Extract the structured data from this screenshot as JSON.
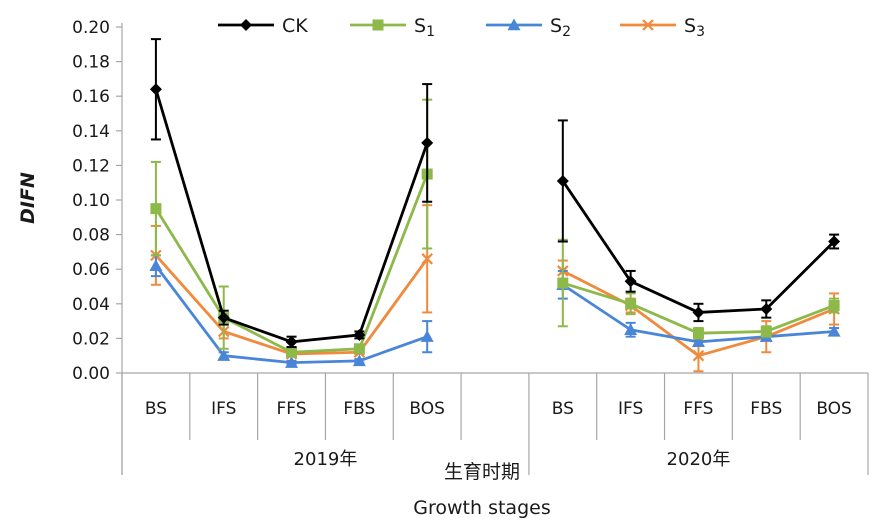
{
  "chart_data": {
    "type": "line",
    "ylabel": "DIFN",
    "xlabel": "Growth stages",
    "xlabel_zh": "生育时期",
    "ylim": [
      0,
      0.2
    ],
    "yticks": [
      "0.00",
      "0.02",
      "0.04",
      "0.06",
      "0.08",
      "0.10",
      "0.12",
      "0.14",
      "0.16",
      "0.18",
      "0.20"
    ],
    "grid": false,
    "legend_position": "top",
    "groups": [
      {
        "label": "2019年",
        "categories": [
          "BS",
          "IFS",
          "FFS",
          "FBS",
          "BOS"
        ]
      },
      {
        "label": "2020年",
        "categories": [
          "BS",
          "IFS",
          "FFS",
          "FBS",
          "BOS"
        ]
      }
    ],
    "series": [
      {
        "name": "CK",
        "sub": "",
        "color": "#000000",
        "marker": "diamond",
        "values": [
          [
            0.164,
            0.032,
            0.018,
            0.022,
            0.133
          ],
          [
            0.111,
            0.053,
            0.035,
            0.037,
            0.076
          ]
        ],
        "errors": [
          [
            0.029,
            0.004,
            0.003,
            0.002,
            0.034
          ],
          [
            0.035,
            0.006,
            0.005,
            0.005,
            0.004
          ]
        ]
      },
      {
        "name": "S",
        "sub": "1",
        "color": "#8db84a",
        "marker": "square",
        "values": [
          [
            0.095,
            0.032,
            0.012,
            0.014,
            0.115
          ],
          [
            0.052,
            0.04,
            0.023,
            0.024,
            0.039
          ]
        ],
        "errors": [
          [
            0.027,
            0.018,
            0.002,
            0.002,
            0.043
          ],
          [
            0.025,
            0.006,
            0.003,
            0.003,
            0.004
          ]
        ]
      },
      {
        "name": "S",
        "sub": "2",
        "color": "#4a86d8",
        "marker": "triangle",
        "values": [
          [
            0.062,
            0.01,
            0.006,
            0.007,
            0.021
          ],
          [
            0.051,
            0.025,
            0.018,
            0.021,
            0.024
          ]
        ],
        "errors": [
          [
            0.006,
            0.002,
            0.001,
            0.001,
            0.009
          ],
          [
            0.008,
            0.004,
            0.002,
            0.002,
            0.002
          ]
        ]
      },
      {
        "name": "S",
        "sub": "3",
        "color": "#f08a3c",
        "marker": "x",
        "values": [
          [
            0.068,
            0.024,
            0.011,
            0.012,
            0.066
          ],
          [
            0.059,
            0.039,
            0.01,
            0.021,
            0.037
          ]
        ],
        "errors": [
          [
            0.017,
            0.004,
            0.001,
            0.001,
            0.031
          ],
          [
            0.006,
            0.004,
            0.009,
            0.009,
            0.009
          ]
        ]
      }
    ]
  }
}
